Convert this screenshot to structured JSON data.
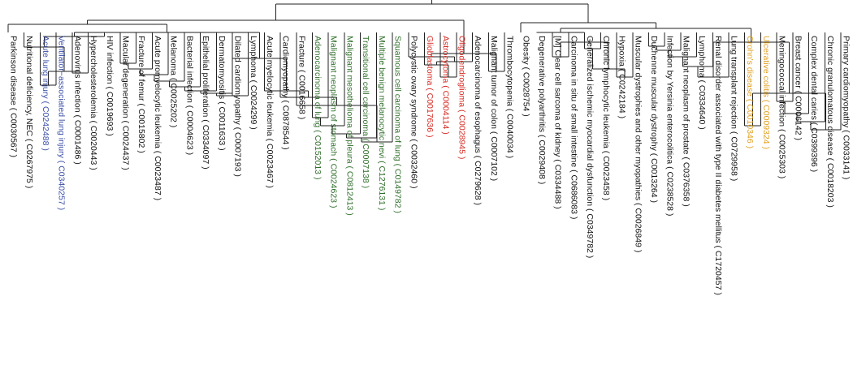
{
  "colors": {
    "default": "#111111",
    "blue": "#3a4fa6",
    "green": "#2f6e2a",
    "red": "#d42a22",
    "orange": "#e0a020"
  },
  "leaves": [
    {
      "label": "Parkinson disease ( C0030567 )",
      "color": "default"
    },
    {
      "label": "Nutritional deficiency, NEC ( C0267975 )",
      "color": "default"
    },
    {
      "label": "Acute lung injury ( C0242488 )",
      "color": "blue"
    },
    {
      "label": "Ventilator−associated lung injury ( C0340257 )",
      "color": "blue"
    },
    {
      "label": "Adenovirus infection ( C0001486 )",
      "color": "default"
    },
    {
      "label": "Hypercholesterolemia ( C0020443 )",
      "color": "default"
    },
    {
      "label": "HIV infection ( C0019693 )",
      "color": "default"
    },
    {
      "label": "Macular degeneration ( C0024437 )",
      "color": "default"
    },
    {
      "label": "Fracture of femur ( C0015802 )",
      "color": "default"
    },
    {
      "label": "Acute promyelocytic leukemia ( C0023487 )",
      "color": "default"
    },
    {
      "label": "Melanoma ( C0025202 )",
      "color": "default"
    },
    {
      "label": "Bacterial infection ( C0004623 )",
      "color": "default"
    },
    {
      "label": "Epithelial proliferation ( C0334097 )",
      "color": "default"
    },
    {
      "label": "Dermatomyositis ( C0011633 )",
      "color": "default"
    },
    {
      "label": "Dilated cardiomyopathy ( C0007193 )",
      "color": "default"
    },
    {
      "label": "Lymphoma ( C0024299 )",
      "color": "default"
    },
    {
      "label": "Acute myelocytic leukemia ( C0023467 )",
      "color": "default"
    },
    {
      "label": "Cardiomyopathy ( C0878544 )",
      "color": "default"
    },
    {
      "label": "Fracture ( C0016658 )",
      "color": "default"
    },
    {
      "label": "Adenocarcinoma of lung ( C0152013 )",
      "color": "green"
    },
    {
      "label": "Malignant neoplasm of stomach ( C0024623 )",
      "color": "green"
    },
    {
      "label": "Malignant mesothelioma of pleura ( C0812413 )",
      "color": "green"
    },
    {
      "label": "Transitional cell carcinoma ( C0007138 )",
      "color": "green"
    },
    {
      "label": "Multiple benign melanocytic nevi ( C1276131 )",
      "color": "green"
    },
    {
      "label": "Squamous cell carcinoma of lung ( C0149782 )",
      "color": "green"
    },
    {
      "label": "Polycystic ovary syndrome ( C0032460 )",
      "color": "default"
    },
    {
      "label": "Glioblastoma ( C0017636 )",
      "color": "red"
    },
    {
      "label": "Astrocytoma ( C0004114 )",
      "color": "red"
    },
    {
      "label": "Oligodendroglioma ( C0028945 )",
      "color": "red"
    },
    {
      "label": "Adenocarcinoma of esophagus ( C0279628 )",
      "color": "default"
    },
    {
      "label": "Malignant tumor of colon ( C0007102 )",
      "color": "default"
    },
    {
      "label": "Thrombocytopenia ( C0040034 )",
      "color": "default"
    },
    {
      "label": "Obesity ( C0028754 )",
      "color": "default"
    },
    {
      "label": "Degenerative polyarthritis ( C0029408 )",
      "color": "default"
    },
    {
      "label": "[M] Clear cell sarcoma of kidney ( C0334488 )",
      "color": "default"
    },
    {
      "label": "Carcinoma in situ of small intestine ( C0686083 )",
      "color": "default"
    },
    {
      "label": "Generalized ischemic myocardial dysfunction ( C0349782 )",
      "color": "default"
    },
    {
      "label": "Chronic lymphocytic leukemia ( C0023458 )",
      "color": "default"
    },
    {
      "label": "Hypoxia ( C0242184 )",
      "color": "default"
    },
    {
      "label": "Muscular dystrophies and other myopathies ( C0026849 )",
      "color": "default"
    },
    {
      "label": "Duchenne muscular dystrophy ( C0013264 )",
      "color": "default"
    },
    {
      "label": "Infection by Yersinia enterocolitica ( C0238528 )",
      "color": "default"
    },
    {
      "label": "Malignant neoplasm of prostate ( C0376358 )",
      "color": "default"
    },
    {
      "label": "Lymphoma ( C0334640 )",
      "color": "default"
    },
    {
      "label": "Renal disorder associated with type II diabetes mellitus ( C1720457 )",
      "color": "default"
    },
    {
      "label": "Lung transplant rejection ( C0729958 )",
      "color": "default"
    },
    {
      "label": "Crohn's disease ( C0010346 )",
      "color": "orange"
    },
    {
      "label": "Ulcerative colitis ( C0009324 )",
      "color": "orange"
    },
    {
      "label": "Meningococcal infection ( C0025303 )",
      "color": "default"
    },
    {
      "label": "Breast cancer ( C0006142 )",
      "color": "default"
    },
    {
      "label": "Complex dental caries ( C0399396 )",
      "color": "default"
    },
    {
      "label": "Chronic granulomatous disease ( C0018203 )",
      "color": "default"
    },
    {
      "label": "Primary cardiomyopathy ( C0033141 )",
      "color": "default"
    }
  ]
}
